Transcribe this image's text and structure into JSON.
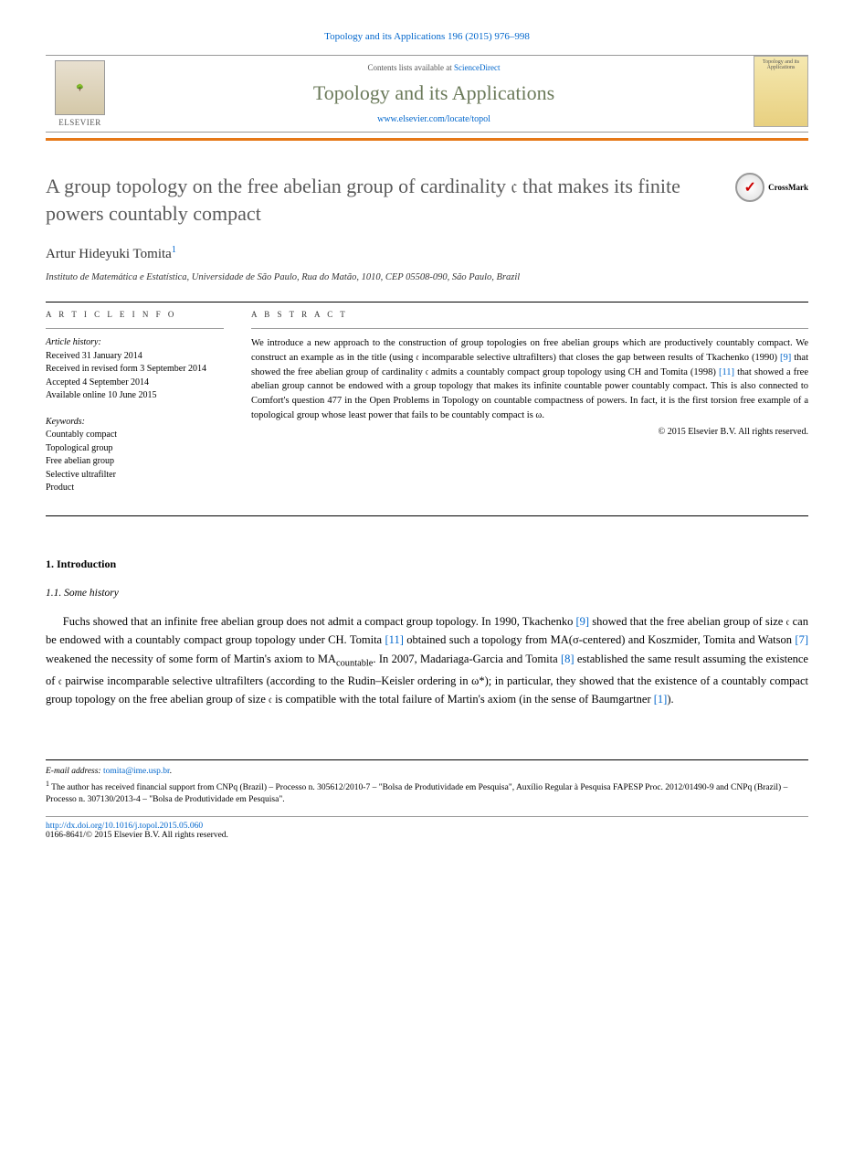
{
  "header": {
    "citation": "Topology and its Applications 196 (2015) 976–998",
    "contents_prefix": "Contents lists available at ",
    "contents_link": "ScienceDirect",
    "journal_title": "Topology and its Applications",
    "journal_url": "www.elsevier.com/locate/topol",
    "publisher": "ELSEVIER",
    "cover_text": "Topology and its Applications"
  },
  "article": {
    "title": "A group topology on the free abelian group of cardinality 𝔠 that makes its finite powers countably compact",
    "crossmark": "CrossMark",
    "author": "Artur Hideyuki Tomita",
    "author_footnote": "1",
    "affiliation": "Instituto de Matemática e Estatística, Universidade de São Paulo, Rua do Matão, 1010, CEP 05508-090, São Paulo, Brazil"
  },
  "info": {
    "heading": "A R T I C L E   I N F O",
    "history_label": "Article history:",
    "received": "Received 31 January 2014",
    "revised": "Received in revised form 3 September 2014",
    "accepted": "Accepted 4 September 2014",
    "online": "Available online 10 June 2015",
    "keywords_label": "Keywords:",
    "keywords": [
      "Countably compact",
      "Topological group",
      "Free abelian group",
      "Selective ultrafilter",
      "Product"
    ]
  },
  "abstract": {
    "heading": "A B S T R A C T",
    "text_parts": [
      "We introduce a new approach to the construction of group topologies on free abelian groups which are productively countably compact. We construct an example as in the title (using 𝔠 incomparable selective ultrafilters) that closes the gap between results of Tkachenko (1990) ",
      " that showed the free abelian group of cardinality 𝔠 admits a countably compact group topology using CH and Tomita (1998) ",
      " that showed a free abelian group cannot be endowed with a group topology that makes its infinite countable power countably compact. This is also connected to Comfort's question 477 in the Open Problems in Topology on countable compactness of powers. In fact, it is the first torsion free example of a topological group whose least power that fails to be countably compact is ω."
    ],
    "ref9": "[9]",
    "ref11": "[11]",
    "copyright": "© 2015 Elsevier B.V. All rights reserved."
  },
  "sections": {
    "intro": "1. Introduction",
    "history": "1.1. Some history"
  },
  "body": {
    "p1_parts": [
      "Fuchs showed that an infinite free abelian group does not admit a compact group topology. In 1990, Tkachenko ",
      " showed that the free abelian group of size 𝔠 can be endowed with a countably compact group topology under CH. Tomita ",
      " obtained such a topology from MA(σ-centered) and Koszmider, Tomita and Watson ",
      " weakened the necessity of some form of Martin's axiom to MA",
      ". In 2007, Madariaga-Garcia and Tomita ",
      " established the same result assuming the existence of 𝔠 pairwise incomparable selective ultrafilters (according to the Rudin–Keisler ordering in ω*); in particular, they showed that the existence of a countably compact group topology on the free abelian group of size 𝔠 is compatible with the total failure of Martin's axiom (in the sense of Baumgartner ",
      ")."
    ],
    "ref9": "[9]",
    "ref11": "[11]",
    "ref7": "[7]",
    "countable_sub": "countable",
    "ref8": "[8]",
    "ref1": "[1]"
  },
  "footnotes": {
    "email_label": "E-mail address: ",
    "email": "tomita@ime.usp.br",
    "note1_num": "1",
    "note1": " The author has received financial support from CNPq (Brazil) – Processo n. 305612/2010-7 – \"Bolsa de Produtividade em Pesquisa\", Auxílio Regular à Pesquisa FAPESP Proc. 2012/01490-9 and CNPq (Brazil) – Processo n. 307130/2013-4 – \"Bolsa de Produtividade em Pesquisa\"."
  },
  "footer": {
    "doi": "http://dx.doi.org/10.1016/j.topol.2015.05.060",
    "issn_line": "0166-8641/© 2015 Elsevier B.V. All rights reserved."
  },
  "colors": {
    "link": "#0066cc",
    "journal_title": "#6b7a5a",
    "orange": "#e67817"
  }
}
